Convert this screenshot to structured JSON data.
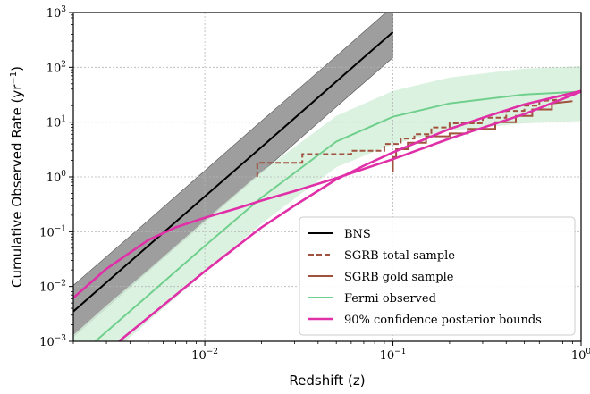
{
  "chart_data": {
    "type": "line",
    "xlabel": "Redshift (z)",
    "ylabel": "Cumulative Observed Rate (yr",
    "ylabel_sup": "−1",
    "ylabel_end": ")",
    "x_scale": "log",
    "y_scale": "log",
    "xlim": [
      0.002,
      1
    ],
    "ylim": [
      0.001,
      1000
    ],
    "grid": true,
    "legend_position": "lower-right",
    "x_ticks": [
      {
        "value": 0.01,
        "base": "10",
        "exp": "−2"
      },
      {
        "value": 0.1,
        "base": "10",
        "exp": "−1"
      },
      {
        "value": 1,
        "base": "10",
        "exp": "0"
      }
    ],
    "y_ticks": [
      {
        "value": 0.001,
        "base": "10",
        "exp": "−3"
      },
      {
        "value": 0.01,
        "base": "10",
        "exp": "−2"
      },
      {
        "value": 0.1,
        "base": "10",
        "exp": "−1"
      },
      {
        "value": 1,
        "base": "10",
        "exp": "0"
      },
      {
        "value": 10,
        "base": "10",
        "exp": "1"
      },
      {
        "value": 100,
        "base": "10",
        "exp": "2"
      },
      {
        "value": 1000,
        "base": "10",
        "exp": "3"
      }
    ],
    "series": [
      {
        "name": "BNS",
        "style": "solid",
        "color": "#000000",
        "x": [
          0.002,
          0.005,
          0.01,
          0.02,
          0.05,
          0.1
        ],
        "y": [
          0.0035,
          0.055,
          0.44,
          3.5,
          55,
          440
        ],
        "band": {
          "color": "#999999",
          "lower": [
            0.0012,
            0.019,
            0.15,
            1.2,
            19,
            150
          ],
          "upper": [
            0.0105,
            0.16,
            1.3,
            10.5,
            160,
            1300
          ]
        }
      },
      {
        "name": "SGRB total sample",
        "style": "dashed-step",
        "color": "#a0523e",
        "x": [
          0.019,
          0.019,
          0.033,
          0.033,
          0.06,
          0.06,
          0.09,
          0.09,
          0.11,
          0.11,
          0.13,
          0.13,
          0.16,
          0.16,
          0.2,
          0.2,
          0.3,
          0.3,
          0.4,
          0.4,
          0.5,
          0.5,
          0.6,
          0.6,
          0.8
        ],
        "y": [
          1.0,
          1.8,
          1.8,
          2.6,
          2.6,
          3.0,
          3.0,
          4.0,
          4.0,
          5.0,
          5.0,
          6.0,
          6.0,
          8.0,
          8.0,
          9.5,
          9.5,
          12,
          12,
          16,
          16,
          20,
          20,
          24,
          26
        ]
      },
      {
        "name": "SGRB gold sample",
        "style": "solid-step",
        "color": "#a0523e",
        "x": [
          0.1,
          0.1,
          0.104,
          0.104,
          0.12,
          0.12,
          0.15,
          0.15,
          0.2,
          0.2,
          0.25,
          0.25,
          0.35,
          0.35,
          0.45,
          0.45,
          0.55,
          0.55,
          0.7,
          0.7,
          0.9
        ],
        "y": [
          1.2,
          2.3,
          2.3,
          3.2,
          3.2,
          4.2,
          4.2,
          5.5,
          5.5,
          6.2,
          6.2,
          7.5,
          7.5,
          10,
          10,
          13,
          13,
          17,
          17,
          22,
          24
        ]
      },
      {
        "name": "Fermi observed",
        "style": "solid",
        "color": "#6fcf8c",
        "x": [
          0.002,
          0.003,
          0.005,
          0.01,
          0.02,
          0.05,
          0.1,
          0.2,
          0.5,
          1.0
        ],
        "y": [
          0.00045,
          0.0015,
          0.0069,
          0.055,
          0.42,
          4.4,
          12.5,
          22,
          32,
          36
        ],
        "band": {
          "color": "#d6f0dc",
          "lower": [
            0.00015,
            0.0005,
            0.0023,
            0.018,
            0.14,
            1.5,
            4.0,
            7.0,
            9.5,
            10.5
          ],
          "upper": [
            0.0013,
            0.0045,
            0.02,
            0.16,
            1.25,
            13,
            37,
            65,
            95,
            105
          ]
        }
      },
      {
        "name": "90% confidence posterior bounds",
        "style": "solid",
        "color": "#e030a8",
        "x": [
          0.002,
          0.003,
          0.005,
          0.007,
          0.01,
          0.015,
          0.02,
          0.03,
          0.05,
          0.1,
          0.2,
          0.5,
          1.0
        ],
        "y": [
          0.0062,
          0.021,
          0.07,
          0.12,
          0.18,
          0.27,
          0.37,
          0.55,
          0.95,
          2.1,
          5.0,
          14,
          36
        ]
      },
      {
        "name": "",
        "style": "solid",
        "color": "#e030a8",
        "x": [
          0.0035,
          0.005,
          0.01,
          0.02,
          0.03,
          0.05,
          0.07,
          0.1,
          0.2,
          0.3,
          0.5,
          1.0
        ],
        "y": [
          0.001,
          0.0027,
          0.019,
          0.12,
          0.3,
          0.9,
          1.6,
          2.8,
          7.5,
          12,
          21,
          37
        ]
      }
    ],
    "legend": [
      {
        "label": "BNS",
        "style": "solid",
        "color": "#000000"
      },
      {
        "label": "SGRB total sample",
        "style": "dashed",
        "color": "#a0523e"
      },
      {
        "label": "SGRB gold sample",
        "style": "solid",
        "color": "#a0523e"
      },
      {
        "label": "Fermi observed",
        "style": "solid",
        "color": "#6fcf8c"
      },
      {
        "label": "90% confidence posterior bounds",
        "style": "solid",
        "color": "#e030a8"
      }
    ]
  }
}
